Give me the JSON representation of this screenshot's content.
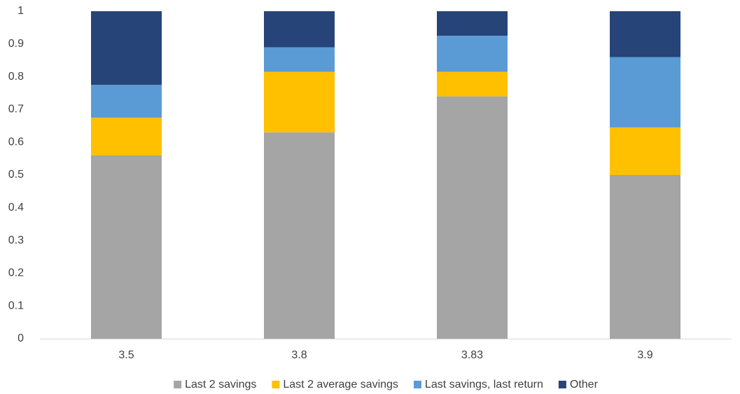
{
  "chart_data": {
    "type": "stacked_bar",
    "categories": [
      "3.5",
      "3.8",
      "3.83",
      "3.9"
    ],
    "series": [
      {
        "name": "Last 2 savings",
        "color": "#a5a5a5",
        "values": [
          0.56,
          0.63,
          0.74,
          0.5
        ]
      },
      {
        "name": "Last 2 average savings",
        "color": "#ffc000",
        "values": [
          0.115,
          0.185,
          0.075,
          0.145
        ]
      },
      {
        "name": "Last savings, last return",
        "color": "#5b9bd5",
        "values": [
          0.1,
          0.075,
          0.11,
          0.215
        ]
      },
      {
        "name": "Other",
        "color": "#264478",
        "values": [
          0.225,
          0.11,
          0.075,
          0.14
        ]
      }
    ],
    "ylim": [
      0,
      1
    ],
    "yticks": [
      0,
      0.1,
      0.2,
      0.3,
      0.4,
      0.5,
      0.6,
      0.7,
      0.8,
      0.9,
      1
    ],
    "grid": false,
    "legend": "bottom"
  }
}
